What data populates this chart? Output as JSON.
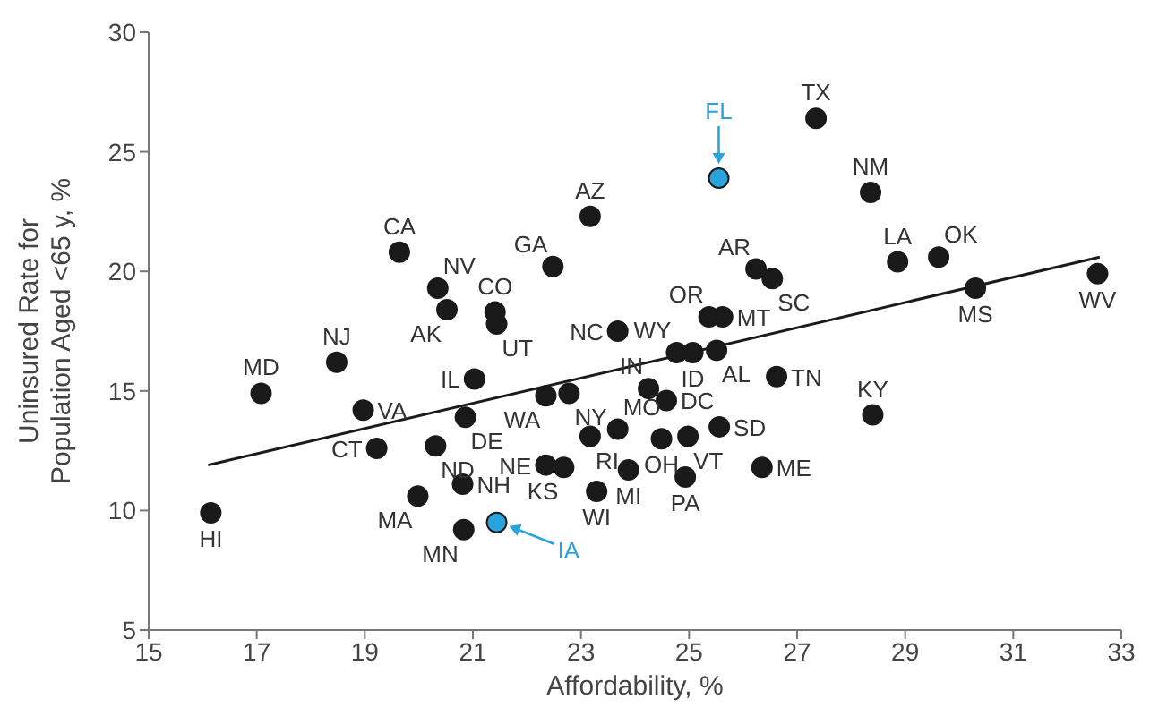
{
  "chart_data": {
    "type": "scatter",
    "xlabel": "Affordability, %",
    "ylabel": "Uninsured Rate for\nPopulation Aged <65 y, %",
    "xlim": [
      15,
      33
    ],
    "xticks": [
      15,
      17,
      19,
      21,
      23,
      25,
      27,
      29,
      31,
      33
    ],
    "ylim": [
      5,
      30
    ],
    "yticks": [
      5,
      10,
      15,
      20,
      25,
      30
    ],
    "marker": "circle",
    "series": [
      {
        "color": "#1a1a1a",
        "x": [
          16.15,
          17.08,
          18.48,
          18.97,
          19.22,
          19.64,
          20.35,
          20.52,
          19.98,
          20.31,
          21.03,
          20.86,
          20.81,
          20.83,
          21.41,
          21.44,
          22.35,
          22.48,
          22.35,
          22.78,
          22.68,
          23.17,
          23.17,
          23.29,
          23.68,
          23.68,
          23.88,
          24.25,
          24.77,
          24.49,
          24.58,
          25.07,
          24.98,
          24.93,
          25.37,
          25.51,
          25.62,
          25.56,
          26.35,
          26.24,
          26.54,
          26.62,
          27.35,
          28.36,
          28.4,
          28.86,
          29.62,
          30.3,
          32.56
        ],
        "values": [
          9.9,
          14.9,
          16.2,
          14.2,
          12.6,
          20.8,
          19.3,
          18.4,
          10.6,
          12.7,
          15.5,
          13.9,
          11.1,
          9.2,
          18.3,
          17.8,
          14.8,
          20.2,
          11.9,
          14.9,
          11.8,
          22.3,
          13.1,
          10.8,
          17.5,
          13.4,
          11.7,
          15.1,
          16.6,
          13.0,
          14.6,
          16.6,
          13.1,
          11.4,
          18.1,
          16.7,
          18.1,
          13.5,
          11.8,
          20.1,
          19.7,
          15.6,
          26.4,
          23.3,
          14.0,
          20.4,
          20.6,
          19.3,
          19.9
        ]
      },
      {
        "color": "#29a3dc",
        "x": [
          21.44,
          25.55
        ],
        "values": [
          9.5,
          23.9
        ]
      },
      {
        "type": "line",
        "marker": "none",
        "color": "#1a1a1a",
        "x": [
          16.1,
          32.6
        ],
        "values": [
          11.9,
          20.6
        ]
      }
    ],
    "annotations": [
      {
        "text": "HI",
        "x": 16.15,
        "y": 9.9
      },
      {
        "text": "MD",
        "x": 17.08,
        "y": 14.9
      },
      {
        "text": "NJ",
        "x": 18.48,
        "y": 16.2
      },
      {
        "text": "VA",
        "x": 18.97,
        "y": 14.2
      },
      {
        "text": "CT",
        "x": 19.22,
        "y": 12.6
      },
      {
        "text": "CA",
        "x": 19.64,
        "y": 20.8
      },
      {
        "text": "NV",
        "x": 20.35,
        "y": 19.3
      },
      {
        "text": "AK",
        "x": 20.52,
        "y": 18.4
      },
      {
        "text": "MA",
        "x": 19.98,
        "y": 10.6
      },
      {
        "text": "ND",
        "x": 20.31,
        "y": 12.7
      },
      {
        "text": "IL",
        "x": 21.03,
        "y": 15.5
      },
      {
        "text": "DE",
        "x": 20.86,
        "y": 13.9
      },
      {
        "text": "NH",
        "x": 20.81,
        "y": 11.1
      },
      {
        "text": "MN",
        "x": 20.83,
        "y": 9.2
      },
      {
        "text": "CO",
        "x": 21.41,
        "y": 18.3
      },
      {
        "text": "UT",
        "x": 21.44,
        "y": 17.8
      },
      {
        "text": "IA",
        "x": 21.44,
        "y": 9.5
      },
      {
        "text": "WA",
        "x": 22.35,
        "y": 14.8
      },
      {
        "text": "GA",
        "x": 22.48,
        "y": 20.2
      },
      {
        "text": "NE",
        "x": 22.35,
        "y": 11.9
      },
      {
        "text": "NY",
        "x": 22.78,
        "y": 14.9
      },
      {
        "text": "KS",
        "x": 22.68,
        "y": 11.8
      },
      {
        "text": "AZ",
        "x": 23.17,
        "y": 22.3
      },
      {
        "text": "RI",
        "x": 23.17,
        "y": 13.1
      },
      {
        "text": "WI",
        "x": 23.29,
        "y": 10.8
      },
      {
        "text": "NC",
        "x": 23.68,
        "y": 17.5
      },
      {
        "text": "MO",
        "x": 23.68,
        "y": 13.4
      },
      {
        "text": "MI",
        "x": 23.88,
        "y": 11.7
      },
      {
        "text": "IN",
        "x": 24.25,
        "y": 15.1
      },
      {
        "text": "WY",
        "x": 24.77,
        "y": 16.6
      },
      {
        "text": "OH",
        "x": 24.49,
        "y": 13.0
      },
      {
        "text": "DC",
        "x": 24.58,
        "y": 14.6
      },
      {
        "text": "ID",
        "x": 25.07,
        "y": 16.6
      },
      {
        "text": "VT",
        "x": 24.98,
        "y": 13.1
      },
      {
        "text": "PA",
        "x": 24.93,
        "y": 11.4
      },
      {
        "text": "FL",
        "x": 25.55,
        "y": 23.9
      },
      {
        "text": "OR",
        "x": 25.37,
        "y": 18.1
      },
      {
        "text": "AL",
        "x": 25.51,
        "y": 16.7
      },
      {
        "text": "MT",
        "x": 25.62,
        "y": 18.1
      },
      {
        "text": "SD",
        "x": 25.56,
        "y": 13.5
      },
      {
        "text": "ME",
        "x": 26.35,
        "y": 11.8
      },
      {
        "text": "AR",
        "x": 26.24,
        "y": 20.1
      },
      {
        "text": "SC",
        "x": 26.54,
        "y": 19.7
      },
      {
        "text": "TN",
        "x": 26.62,
        "y": 15.6
      },
      {
        "text": "TX",
        "x": 27.35,
        "y": 26.4
      },
      {
        "text": "NM",
        "x": 28.36,
        "y": 23.3
      },
      {
        "text": "KY",
        "x": 28.4,
        "y": 14.0
      },
      {
        "text": "LA",
        "x": 28.86,
        "y": 20.4
      },
      {
        "text": "OK",
        "x": 29.62,
        "y": 20.6
      },
      {
        "text": "MS",
        "x": 30.3,
        "y": 19.3
      },
      {
        "text": "WV",
        "x": 32.56,
        "y": 19.9
      }
    ]
  }
}
